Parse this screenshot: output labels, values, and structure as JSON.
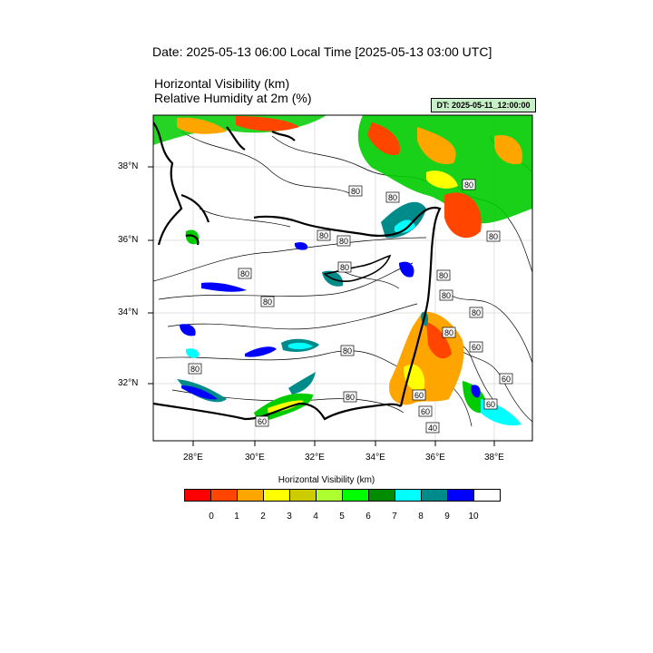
{
  "header": {
    "date_title": "Date: 2025-05-13  06:00 Local Time [2025-05-13  03:00 UTC]",
    "variable_1": "Horizontal Visibility   (km)",
    "variable_2": "Relative Humidity at 2m   (%)",
    "dt_label": "DT: 2025-05-11_12:00:00"
  },
  "map": {
    "lat_labels": [
      "38°N",
      "36°N",
      "34°N",
      "32°N"
    ],
    "lon_labels": [
      "28°E",
      "30°E",
      "32°E",
      "34°E",
      "36°E",
      "38°E"
    ],
    "contour_labels": [
      "80",
      "80",
      "80",
      "80",
      "80",
      "80",
      "80",
      "80",
      "80",
      "80",
      "80",
      "80",
      "80",
      "80",
      "60",
      "80",
      "60",
      "80",
      "60",
      "60",
      "60",
      "60",
      "40"
    ]
  },
  "legend": {
    "title": "Horizontal Visibility  (km)",
    "labels": [
      "0",
      "1",
      "2",
      "3",
      "4",
      "5",
      "6",
      "7",
      "8",
      "9",
      "10"
    ],
    "colors": [
      "#ff0000",
      "#ff4500",
      "#ffa500",
      "#ffff00",
      "#cccc00",
      "#adff2f",
      "#00ff00",
      "#008b00",
      "#00ffff",
      "#008b8b",
      "#0000ff",
      "#ffffff"
    ]
  }
}
